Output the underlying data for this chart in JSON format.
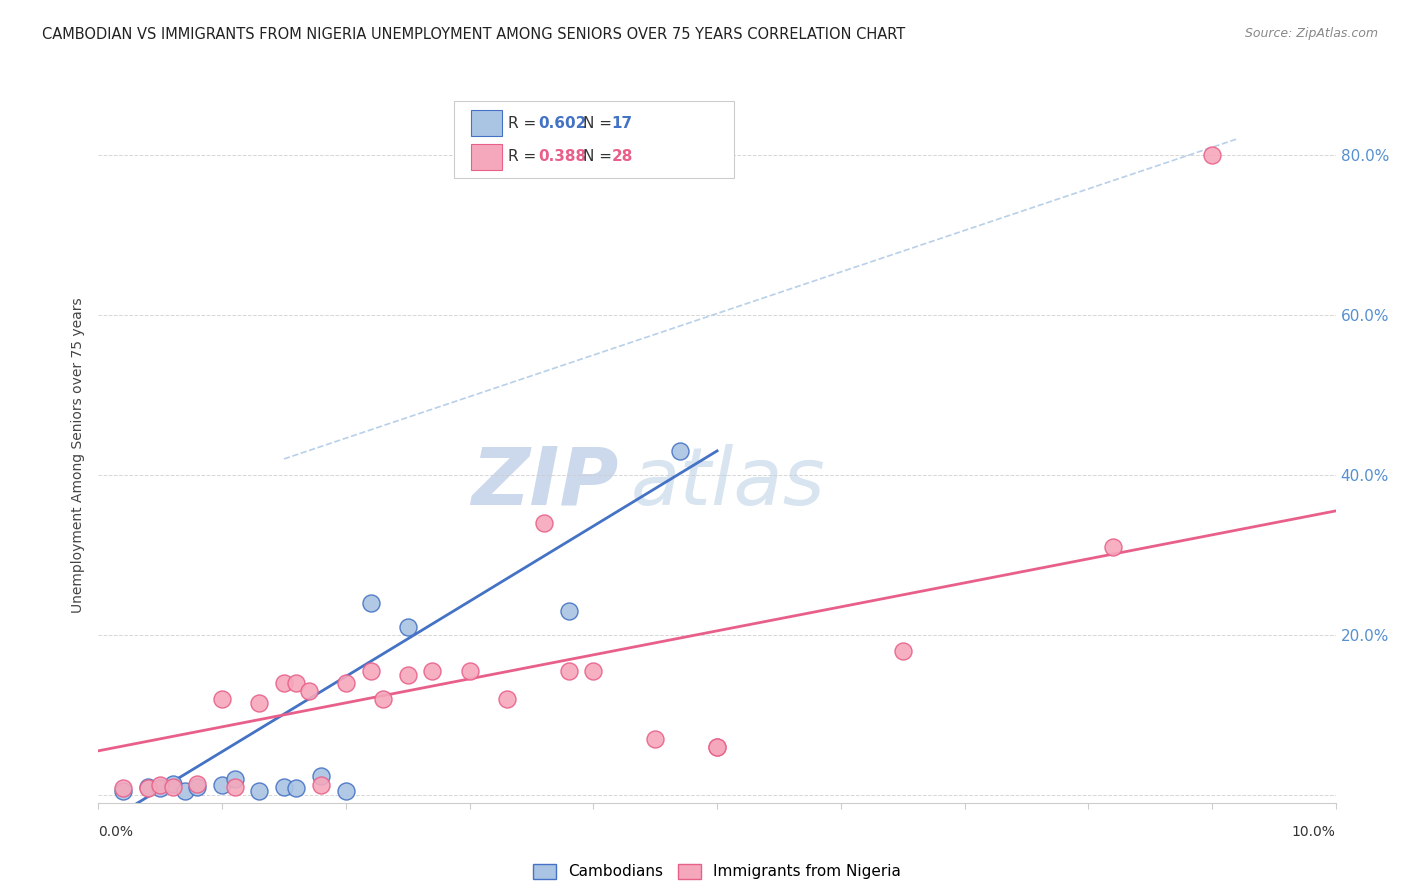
{
  "title": "CAMBODIAN VS IMMIGRANTS FROM NIGERIA UNEMPLOYMENT AMONG SENIORS OVER 75 YEARS CORRELATION CHART",
  "source": "Source: ZipAtlas.com",
  "ylabel": "Unemployment Among Seniors over 75 years",
  "xlim": [
    0.0,
    0.1
  ],
  "ylim": [
    -0.01,
    0.86
  ],
  "yticks": [
    0.0,
    0.2,
    0.4,
    0.6,
    0.8
  ],
  "ytick_labels": [
    "",
    "20.0%",
    "40.0%",
    "60.0%",
    "80.0%"
  ],
  "color_cambodian": "#aac4e4",
  "color_nigeria": "#f5a8bc",
  "line_color_cambodian": "#4472c4",
  "line_color_nigeria": "#e8608a",
  "line_color_diagonal": "#b8d0e8",
  "watermark_zip": "ZIP",
  "watermark_atlas": "atlas",
  "cambodian_scatter": [
    [
      0.002,
      0.005
    ],
    [
      0.004,
      0.01
    ],
    [
      0.005,
      0.008
    ],
    [
      0.006,
      0.013
    ],
    [
      0.007,
      0.005
    ],
    [
      0.008,
      0.01
    ],
    [
      0.01,
      0.012
    ],
    [
      0.011,
      0.02
    ],
    [
      0.013,
      0.005
    ],
    [
      0.015,
      0.01
    ],
    [
      0.016,
      0.008
    ],
    [
      0.018,
      0.023
    ],
    [
      0.02,
      0.005
    ],
    [
      0.022,
      0.24
    ],
    [
      0.025,
      0.21
    ],
    [
      0.038,
      0.23
    ],
    [
      0.047,
      0.43
    ]
  ],
  "nigeria_scatter": [
    [
      0.002,
      0.008
    ],
    [
      0.004,
      0.008
    ],
    [
      0.005,
      0.012
    ],
    [
      0.006,
      0.01
    ],
    [
      0.008,
      0.013
    ],
    [
      0.01,
      0.12
    ],
    [
      0.011,
      0.01
    ],
    [
      0.013,
      0.115
    ],
    [
      0.015,
      0.14
    ],
    [
      0.016,
      0.14
    ],
    [
      0.017,
      0.13
    ],
    [
      0.018,
      0.012
    ],
    [
      0.02,
      0.14
    ],
    [
      0.022,
      0.155
    ],
    [
      0.023,
      0.12
    ],
    [
      0.025,
      0.15
    ],
    [
      0.027,
      0.155
    ],
    [
      0.03,
      0.155
    ],
    [
      0.033,
      0.12
    ],
    [
      0.036,
      0.34
    ],
    [
      0.038,
      0.155
    ],
    [
      0.04,
      0.155
    ],
    [
      0.045,
      0.07
    ],
    [
      0.05,
      0.06
    ],
    [
      0.05,
      0.06
    ],
    [
      0.065,
      0.18
    ],
    [
      0.082,
      0.31
    ],
    [
      0.09,
      0.8
    ]
  ],
  "blue_line": [
    [
      0.0,
      -0.04
    ],
    [
      0.05,
      0.43
    ]
  ],
  "pink_line": [
    [
      0.0,
      0.055
    ],
    [
      0.1,
      0.355
    ]
  ],
  "diag_line": [
    [
      0.015,
      0.42
    ],
    [
      0.092,
      0.82
    ]
  ]
}
